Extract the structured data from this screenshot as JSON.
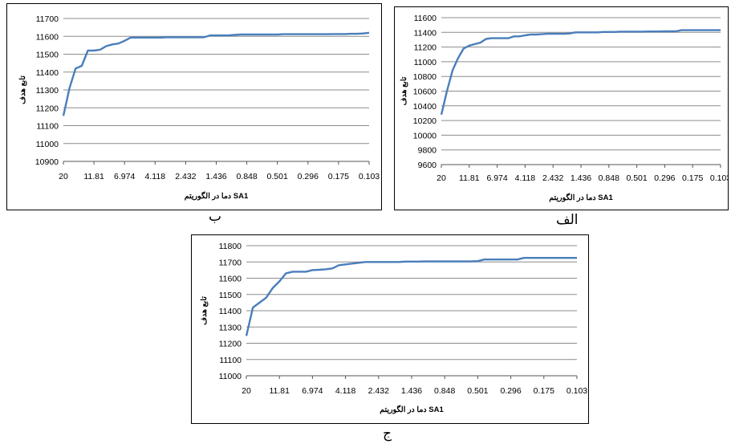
{
  "line_color": "#4a7ebb",
  "grid_color": "#8c8c8c",
  "chart_data": [
    {
      "id": "b",
      "type": "line",
      "caption": "ب",
      "xlabel": "دما در الگوریتم SA1",
      "ylabel": "تابع هدف",
      "ylim": [
        10900,
        11700
      ],
      "yticks": [
        10900,
        11000,
        11100,
        11200,
        11300,
        11400,
        11500,
        11600,
        11700
      ],
      "xticklabels": [
        "20",
        "11.81",
        "6.974",
        "4.118",
        "2.432",
        "1.436",
        "0.848",
        "0.501",
        "0.296",
        "0.175",
        "0.103"
      ],
      "x": [
        0,
        0.2,
        0.4,
        0.6,
        0.8,
        1.0,
        1.2,
        1.4,
        1.6,
        1.8,
        2.0,
        2.2,
        2.4,
        2.6,
        2.8,
        3.0,
        3.2,
        3.4,
        3.6,
        3.8,
        4.0,
        4.2,
        4.4,
        4.6,
        4.8,
        5.0,
        5.2,
        5.4,
        5.6,
        5.8,
        6.0,
        6.2,
        6.4,
        6.6,
        6.8,
        7.0,
        7.2,
        7.4,
        7.6,
        7.8,
        8.0,
        8.2,
        8.4,
        8.6,
        8.8,
        9.0,
        9.2,
        9.4,
        9.6,
        9.8,
        10.0
      ],
      "values": [
        11155,
        11310,
        11420,
        11435,
        11520,
        11520,
        11525,
        11545,
        11555,
        11560,
        11575,
        11593,
        11593,
        11593,
        11593,
        11593,
        11593,
        11595,
        11595,
        11595,
        11595,
        11595,
        11595,
        11595,
        11605,
        11605,
        11605,
        11605,
        11608,
        11610,
        11610,
        11610,
        11610,
        11610,
        11610,
        11610,
        11612,
        11612,
        11612,
        11612,
        11612,
        11612,
        11612,
        11612,
        11613,
        11613,
        11613,
        11614,
        11614,
        11616,
        11620
      ]
    },
    {
      "id": "alef",
      "type": "line",
      "caption": "الف",
      "xlabel": "دما در الگوریتم SA1",
      "ylabel": "تابع هدف",
      "ylim": [
        9600,
        11600
      ],
      "yticks": [
        9600,
        9800,
        10000,
        10200,
        10400,
        10600,
        10800,
        11000,
        11200,
        11400,
        11600
      ],
      "xticklabels": [
        "20",
        "11.81",
        "6.974",
        "4.118",
        "2.432",
        "1.436",
        "0.848",
        "0.501",
        "0.296",
        "0.175",
        "0.103"
      ],
      "x": [
        0,
        0.2,
        0.4,
        0.6,
        0.8,
        1.0,
        1.2,
        1.4,
        1.6,
        1.8,
        2.0,
        2.2,
        2.4,
        2.6,
        2.8,
        3.0,
        3.2,
        3.4,
        3.6,
        3.8,
        4.0,
        4.2,
        4.4,
        4.6,
        4.8,
        5.0,
        5.2,
        5.4,
        5.6,
        5.8,
        6.0,
        6.2,
        6.4,
        6.6,
        6.8,
        7.0,
        7.2,
        7.4,
        7.6,
        7.8,
        8.0,
        8.2,
        8.4,
        8.6,
        8.8,
        9.0,
        9.2,
        9.4,
        9.6,
        9.8,
        10.0
      ],
      "values": [
        10280,
        10600,
        10880,
        11050,
        11180,
        11220,
        11240,
        11260,
        11310,
        11320,
        11320,
        11320,
        11320,
        11345,
        11345,
        11360,
        11370,
        11370,
        11375,
        11380,
        11380,
        11380,
        11380,
        11385,
        11400,
        11400,
        11400,
        11400,
        11400,
        11405,
        11405,
        11405,
        11410,
        11410,
        11410,
        11410,
        11410,
        11412,
        11412,
        11412,
        11414,
        11414,
        11414,
        11430,
        11430,
        11430,
        11430,
        11430,
        11430,
        11430,
        11430
      ]
    },
    {
      "id": "jim",
      "type": "line",
      "caption": "ج",
      "xlabel": "دما در الگوریتم SA1",
      "ylabel": "تابع هدف",
      "ylim": [
        11000,
        11800
      ],
      "yticks": [
        11000,
        11100,
        11200,
        11300,
        11400,
        11500,
        11600,
        11700,
        11800
      ],
      "xticklabels": [
        "20",
        "11.81",
        "6.974",
        "4.118",
        "2.432",
        "1.436",
        "0.848",
        "0.501",
        "0.296",
        "0.175",
        "0.103"
      ],
      "x": [
        0,
        0.2,
        0.4,
        0.6,
        0.8,
        1.0,
        1.2,
        1.4,
        1.6,
        1.8,
        2.0,
        2.2,
        2.4,
        2.6,
        2.8,
        3.0,
        3.2,
        3.4,
        3.6,
        3.8,
        4.0,
        4.2,
        4.4,
        4.6,
        4.8,
        5.0,
        5.2,
        5.4,
        5.6,
        5.8,
        6.0,
        6.2,
        6.4,
        6.6,
        6.8,
        7.0,
        7.2,
        7.4,
        7.6,
        7.8,
        8.0,
        8.2,
        8.4,
        8.6,
        8.8,
        9.0,
        9.2,
        9.4,
        9.6,
        9.8,
        10.0
      ],
      "values": [
        11245,
        11420,
        11450,
        11480,
        11540,
        11580,
        11630,
        11640,
        11640,
        11640,
        11650,
        11652,
        11655,
        11660,
        11680,
        11685,
        11690,
        11695,
        11700,
        11700,
        11700,
        11700,
        11700,
        11700,
        11702,
        11702,
        11702,
        11703,
        11703,
        11703,
        11703,
        11703,
        11703,
        11703,
        11703,
        11705,
        11715,
        11715,
        11715,
        11715,
        11715,
        11715,
        11725,
        11725,
        11725,
        11725,
        11725,
        11725,
        11725,
        11725,
        11725
      ]
    }
  ]
}
